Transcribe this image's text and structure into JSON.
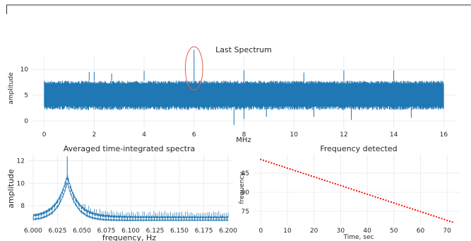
{
  "chart_data": [
    {
      "type": "line",
      "title": "Last Spectrum",
      "xlabel": "MHz",
      "ylabel": "amplitude",
      "xlim": [
        -0.5,
        16.5
      ],
      "ylim": [
        -1.5,
        12.5
      ],
      "x_ticks": [
        0,
        2,
        4,
        6,
        8,
        10,
        12,
        14,
        16
      ],
      "x_tick_labels": [
        "0",
        "2",
        "4",
        "6",
        "8",
        "10",
        "12",
        "14",
        "16"
      ],
      "y_ticks": [
        0,
        5,
        10
      ],
      "y_tick_labels": [
        "0",
        "5",
        "10"
      ],
      "grid": true,
      "color": "#1f77b4",
      "band": {
        "x": [
          0,
          16
        ],
        "low": 2.5,
        "high": 7.8
      },
      "spikes": [
        {
          "x": 1.8,
          "y": 9.5
        },
        {
          "x": 2.0,
          "y": 9.5
        },
        {
          "x": 2.7,
          "y": 9.2
        },
        {
          "x": 4.0,
          "y": 9.7
        },
        {
          "x": 6.0,
          "y": 13.8
        },
        {
          "x": 8.0,
          "y": 9.8
        },
        {
          "x": 10.4,
          "y": 9.4
        },
        {
          "x": 12.0,
          "y": 9.8
        },
        {
          "x": 14.0,
          "y": 9.8
        }
      ],
      "dips": [
        {
          "x": 7.6,
          "y": -0.8
        },
        {
          "x": 8.0,
          "y": 0.4
        },
        {
          "x": 8.9,
          "y": 0.8
        },
        {
          "x": 10.8,
          "y": 0.8
        },
        {
          "x": 12.3,
          "y": 0.2
        },
        {
          "x": 14.7,
          "y": 0.6
        }
      ],
      "annotation": {
        "shape": "ellipse",
        "center_x": 6.0,
        "center_y": 10.2,
        "rx": 0.35,
        "ry": 4.2,
        "color": "#e05a4e"
      }
    },
    {
      "type": "line",
      "title": "Averaged time-integrated spectra",
      "xlabel": "frequency, Hz",
      "ylabel": "amplitude",
      "xlim": [
        5.995,
        6.205
      ],
      "ylim": [
        6.3,
        12.6
      ],
      "x_ticks": [
        6.0,
        6.025,
        6.05,
        6.075,
        6.1,
        6.125,
        6.15,
        6.175,
        6.2
      ],
      "x_tick_labels": [
        "6.000",
        "6.025",
        "6.050",
        "6.075",
        "6.100",
        "6.125",
        "6.150",
        "6.175",
        "6.200"
      ],
      "y_ticks": [
        8,
        10,
        12
      ],
      "y_tick_labels": [
        "8",
        "10",
        "12"
      ],
      "grid": true,
      "color": "#1f77b4",
      "peak": {
        "x": 6.035,
        "y": 10.3,
        "spike_y": 12.4
      },
      "baseline": 6.8,
      "ripple_amplitude": 0.45
    },
    {
      "type": "scatter",
      "title": "Frequency detected",
      "xlabel": "Time, sec",
      "ylabel": "frequency",
      "xlim": [
        -3,
        75
      ],
      "ylim": [
        71.5,
        90
      ],
      "x_ticks": [
        0,
        10,
        20,
        30,
        40,
        50,
        60,
        70
      ],
      "x_tick_labels": [
        "0",
        "10",
        "20",
        "30",
        "40",
        "50",
        "60",
        "70"
      ],
      "y_ticks": [
        75,
        80,
        85
      ],
      "y_tick_labels": [
        "75",
        "80",
        "85"
      ],
      "grid": true,
      "color": "#ff0000",
      "x": [
        0,
        72
      ],
      "y": [
        88.6,
        72.2
      ],
      "n_points": 73
    }
  ]
}
